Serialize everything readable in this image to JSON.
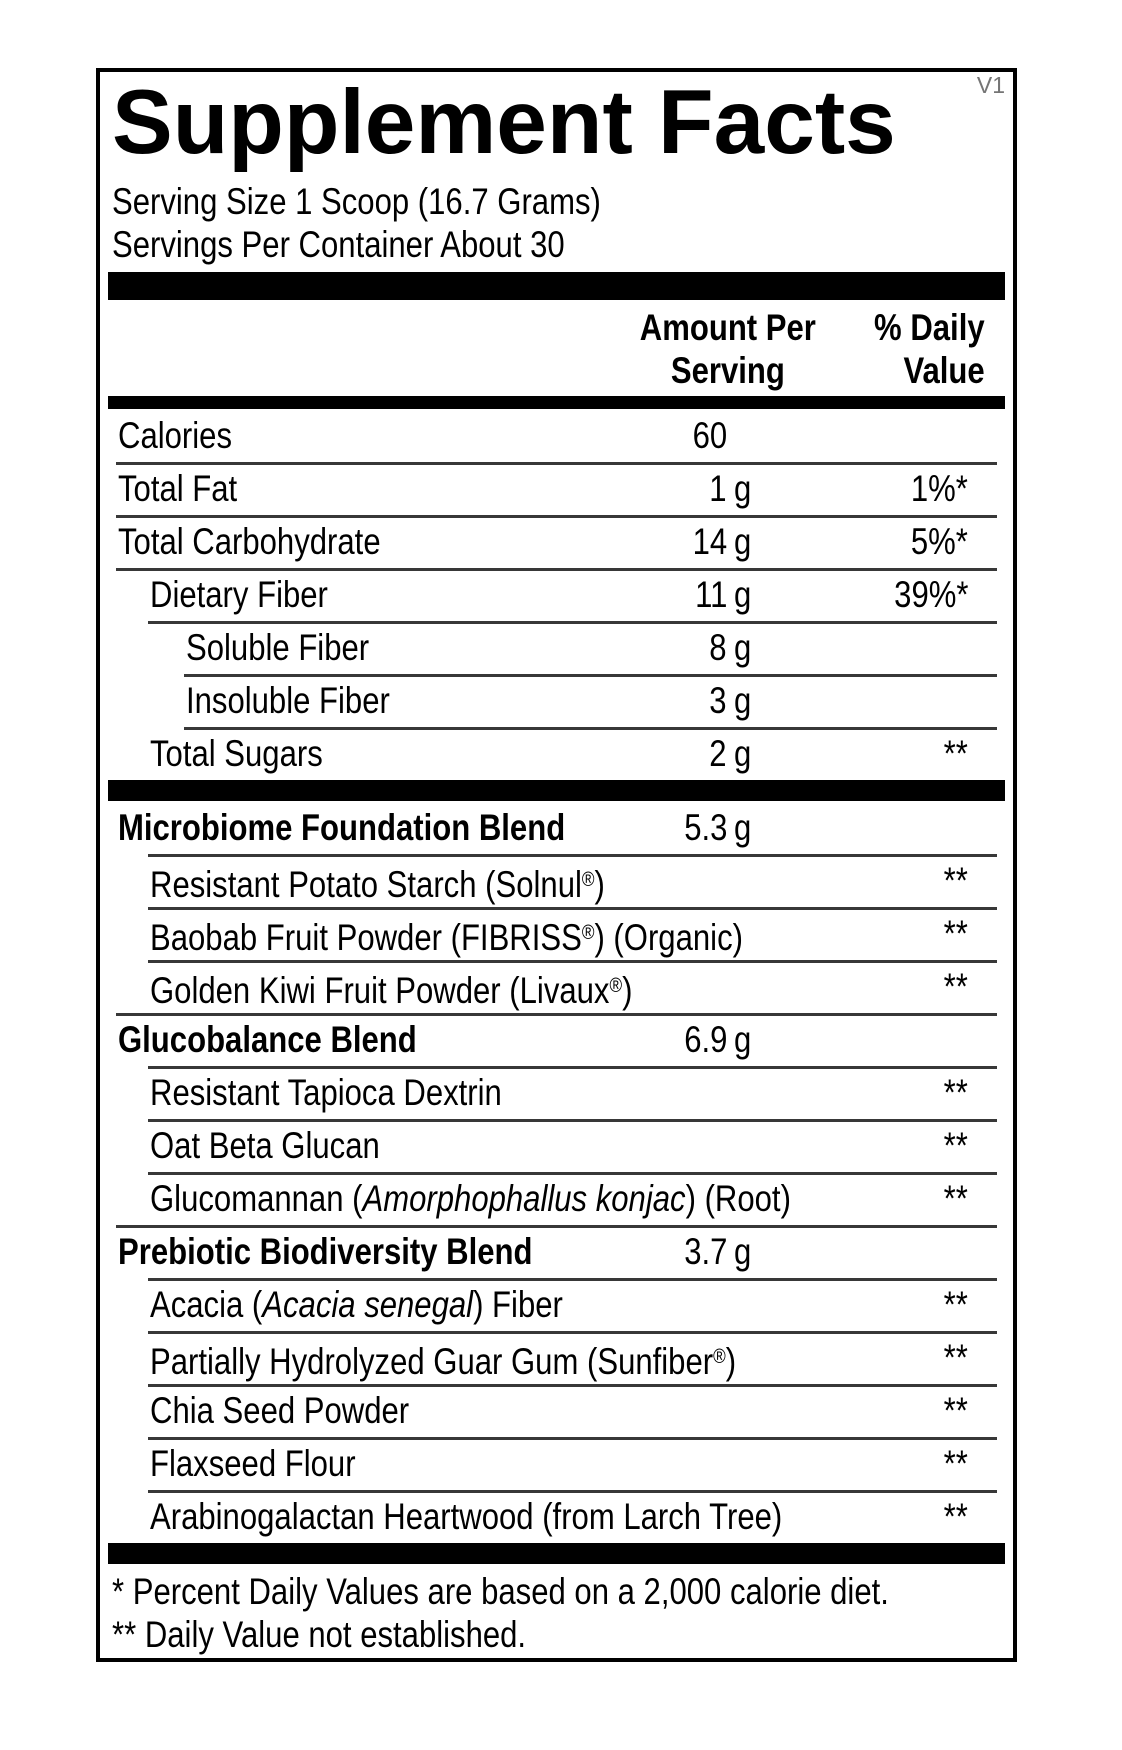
{
  "version_tag": "V1",
  "title": "Supplement Facts",
  "serving": {
    "size_line": "Serving Size 1 Scoop (16.7 Grams)",
    "container_line": "Servings Per Container About 30"
  },
  "columns": {
    "amount_line1": "Amount Per",
    "amount_line2": "Serving",
    "dv_line1": "% Daily",
    "dv_line2": "Value"
  },
  "table": {
    "rows": [
      {
        "parts": [
          [
            "t",
            "Calories"
          ]
        ],
        "num": "60",
        "unit": "",
        "dv": "",
        "indent": 0,
        "sep": null
      },
      {
        "parts": [
          [
            "t",
            "Total Fat"
          ]
        ],
        "num": "1",
        "unit": "g",
        "dv": "1%*",
        "indent": 0,
        "sep": 0
      },
      {
        "parts": [
          [
            "t",
            "Total Carbohydrate"
          ]
        ],
        "num": "14",
        "unit": "g",
        "dv": "5%*",
        "indent": 0,
        "sep": 0
      },
      {
        "parts": [
          [
            "t",
            "Dietary Fiber"
          ]
        ],
        "num": "11",
        "unit": "g",
        "dv": "39%*",
        "indent": 1,
        "sep": 0
      },
      {
        "parts": [
          [
            "t",
            "Soluble Fiber"
          ]
        ],
        "num": "8",
        "unit": "g",
        "dv": "",
        "indent": 2,
        "sep": 1
      },
      {
        "parts": [
          [
            "t",
            "Insoluble Fiber"
          ]
        ],
        "num": "3",
        "unit": "g",
        "dv": "",
        "indent": 2,
        "sep": 2
      },
      {
        "parts": [
          [
            "t",
            "Total Sugars"
          ]
        ],
        "num": "2",
        "unit": "g",
        "dv": "**",
        "indent": 1,
        "sep": 2
      },
      {
        "type": "bar"
      },
      {
        "parts": [
          [
            "t",
            "Microbiome Foundation Blend"
          ]
        ],
        "num": "5.3",
        "unit": "g",
        "dv": "",
        "indent": 0,
        "sep": null,
        "bold": true
      },
      {
        "parts": [
          [
            "t",
            "Resistant Potato Starch (Solnul"
          ],
          [
            "s",
            "®"
          ],
          [
            "t",
            ")"
          ]
        ],
        "num": "",
        "unit": "",
        "dv": "**",
        "indent": 1,
        "sep": 1
      },
      {
        "parts": [
          [
            "t",
            "Baobab Fruit Powder (FIBRISS"
          ],
          [
            "s",
            "®"
          ],
          [
            "t",
            ") (Organic)"
          ]
        ],
        "num": "",
        "unit": "",
        "dv": "**",
        "indent": 1,
        "sep": 1
      },
      {
        "parts": [
          [
            "t",
            "Golden Kiwi Fruit Powder (Livaux"
          ],
          [
            "s",
            "®"
          ],
          [
            "t",
            ")"
          ]
        ],
        "num": "",
        "unit": "",
        "dv": "**",
        "indent": 1,
        "sep": 1
      },
      {
        "parts": [
          [
            "t",
            "Glucobalance Blend"
          ]
        ],
        "num": "6.9",
        "unit": "g",
        "dv": "",
        "indent": 0,
        "sep": 0,
        "bold": true
      },
      {
        "parts": [
          [
            "t",
            "Resistant Tapioca Dextrin"
          ]
        ],
        "num": "",
        "unit": "",
        "dv": "**",
        "indent": 1,
        "sep": 1
      },
      {
        "parts": [
          [
            "t",
            "Oat Beta Glucan"
          ]
        ],
        "num": "",
        "unit": "",
        "dv": "**",
        "indent": 1,
        "sep": 1
      },
      {
        "parts": [
          [
            "t",
            "Glucomannan ("
          ],
          [
            "i",
            "Amorphophallus konjac"
          ],
          [
            "t",
            ") (Root)"
          ]
        ],
        "num": "",
        "unit": "",
        "dv": "**",
        "indent": 1,
        "sep": 1
      },
      {
        "parts": [
          [
            "t",
            "Prebiotic Biodiversity Blend"
          ]
        ],
        "num": "3.7",
        "unit": "g",
        "dv": "",
        "indent": 0,
        "sep": 0,
        "bold": true
      },
      {
        "parts": [
          [
            "t",
            "Acacia ("
          ],
          [
            "i",
            "Acacia senegal"
          ],
          [
            "t",
            ") Fiber"
          ]
        ],
        "num": "",
        "unit": "",
        "dv": "**",
        "indent": 1,
        "sep": 1
      },
      {
        "parts": [
          [
            "t",
            "Partially Hydrolyzed Guar Gum (Sunfiber"
          ],
          [
            "s",
            "®"
          ],
          [
            "t",
            ")"
          ]
        ],
        "num": "",
        "unit": "",
        "dv": "**",
        "indent": 1,
        "sep": 1
      },
      {
        "parts": [
          [
            "t",
            "Chia Seed Powder"
          ]
        ],
        "num": "",
        "unit": "",
        "dv": "**",
        "indent": 1,
        "sep": 1
      },
      {
        "parts": [
          [
            "t",
            "Flaxseed Flour"
          ]
        ],
        "num": "",
        "unit": "",
        "dv": "**",
        "indent": 1,
        "sep": 1
      },
      {
        "parts": [
          [
            "t",
            "Arabinogalactan Heartwood (from Larch Tree)"
          ]
        ],
        "num": "",
        "unit": "",
        "dv": "**",
        "indent": 1,
        "sep": 1
      },
      {
        "type": "bar"
      }
    ]
  },
  "footnotes": [
    "* Percent Daily Values are based on a 2,000 calorie diet.",
    "** Daily Value not established."
  ],
  "colors": {
    "text": "#000000",
    "separator": "#383838",
    "bar": "#000000",
    "version_tag": "#757575",
    "background": "#ffffff"
  }
}
